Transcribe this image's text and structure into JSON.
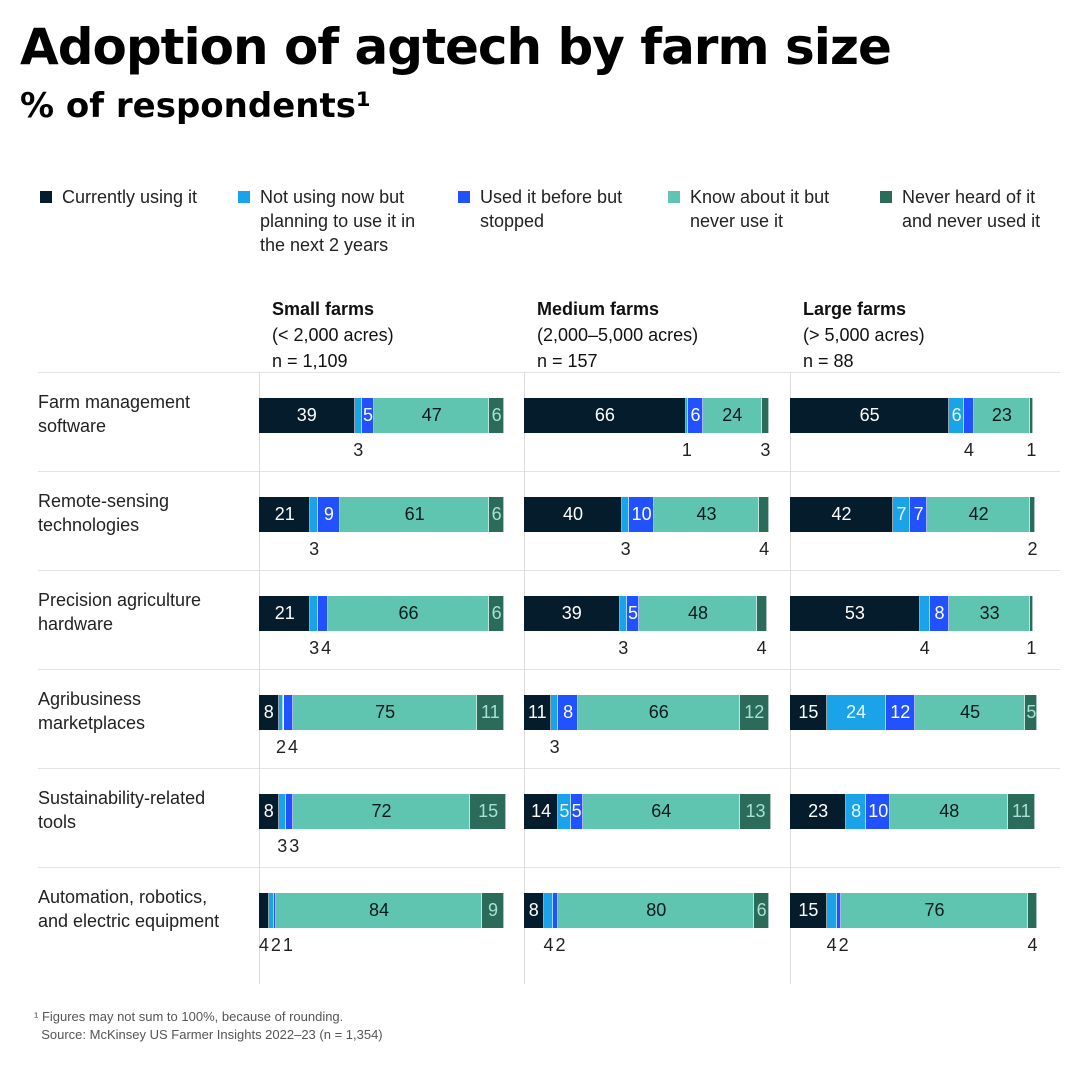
{
  "chart_data": {
    "type": "bar",
    "orientation": "horizontal-stacked",
    "title": "Adoption of agtech by farm size",
    "subtitle": "% of respondents¹",
    "legend_position": "top",
    "series": [
      {
        "name": "Currently using it",
        "color": "#051c2c",
        "label_color": "#ffffff"
      },
      {
        "name": "Not using now but planning to use it in the next 2 years",
        "color": "#1aa3e8",
        "label_color": "#e8f6ff"
      },
      {
        "name": "Used it before but stopped",
        "color": "#2251ff",
        "label_color": "#ffffff"
      },
      {
        "name": "Know about it but never use it",
        "color": "#5fc4b0",
        "label_color": "#0a1a1a"
      },
      {
        "name": "Never heard of it and never used it",
        "color": "#2a6b5a",
        "label_color": "#a8e0d4"
      }
    ],
    "categories": [
      "Farm management software",
      "Remote-sensing technologies",
      "Precision agriculture hardware",
      "Agribusiness marketplaces",
      "Sustainability-related tools",
      "Automation, robotics, and electric equipment"
    ],
    "panels": [
      {
        "title": "Small farms",
        "subtitle": "(< 2,000 acres)",
        "n": "n = 1,109",
        "values": [
          [
            39,
            3,
            5,
            47,
            6
          ],
          [
            21,
            3,
            9,
            61,
            6
          ],
          [
            21,
            3,
            4,
            66,
            6
          ],
          [
            8,
            2,
            4,
            75,
            11
          ],
          [
            8,
            3,
            3,
            72,
            15
          ],
          [
            4,
            2,
            1,
            84,
            9
          ]
        ]
      },
      {
        "title": "Medium farms",
        "subtitle": "(2,000–5,000 acres)",
        "n": "n = 157",
        "values": [
          [
            66,
            1,
            6,
            24,
            3
          ],
          [
            40,
            3,
            10,
            43,
            4
          ],
          [
            39,
            3,
            5,
            48,
            4
          ],
          [
            11,
            3,
            8,
            66,
            12
          ],
          [
            14,
            5,
            5,
            64,
            13
          ],
          [
            8,
            4,
            2,
            80,
            6
          ]
        ]
      },
      {
        "title": "Large farms",
        "subtitle": "(> 5,000 acres)",
        "n": "n = 88",
        "values": [
          [
            65,
            6,
            4,
            23,
            1
          ],
          [
            42,
            7,
            7,
            42,
            2
          ],
          [
            53,
            4,
            8,
            33,
            1
          ],
          [
            15,
            24,
            12,
            45,
            5
          ],
          [
            23,
            8,
            10,
            48,
            11
          ],
          [
            15,
            4,
            2,
            76,
            4
          ]
        ]
      }
    ],
    "xlim": [
      0,
      100
    ]
  },
  "legend_lines": [
    "Currently using it",
    "Not using now but\nplanning to use it in\nthe next 2 years",
    "Used it before but\nstopped",
    "Know about it but\nnever use it",
    "Never heard of it\nand never used it"
  ],
  "row_labels": [
    "Farm management\nsoftware",
    "Remote-sensing\ntechnologies",
    "Precision agriculture\nhardware",
    "Agribusiness\nmarketplaces",
    "Sustainability-related\ntools",
    "Automation, robotics,\nand electric equipment"
  ],
  "footnote": "¹ Figures may not sum to 100%, because of rounding.\n  Source: McKinsey US Farmer Insights 2022–23 (n = 1,354)"
}
